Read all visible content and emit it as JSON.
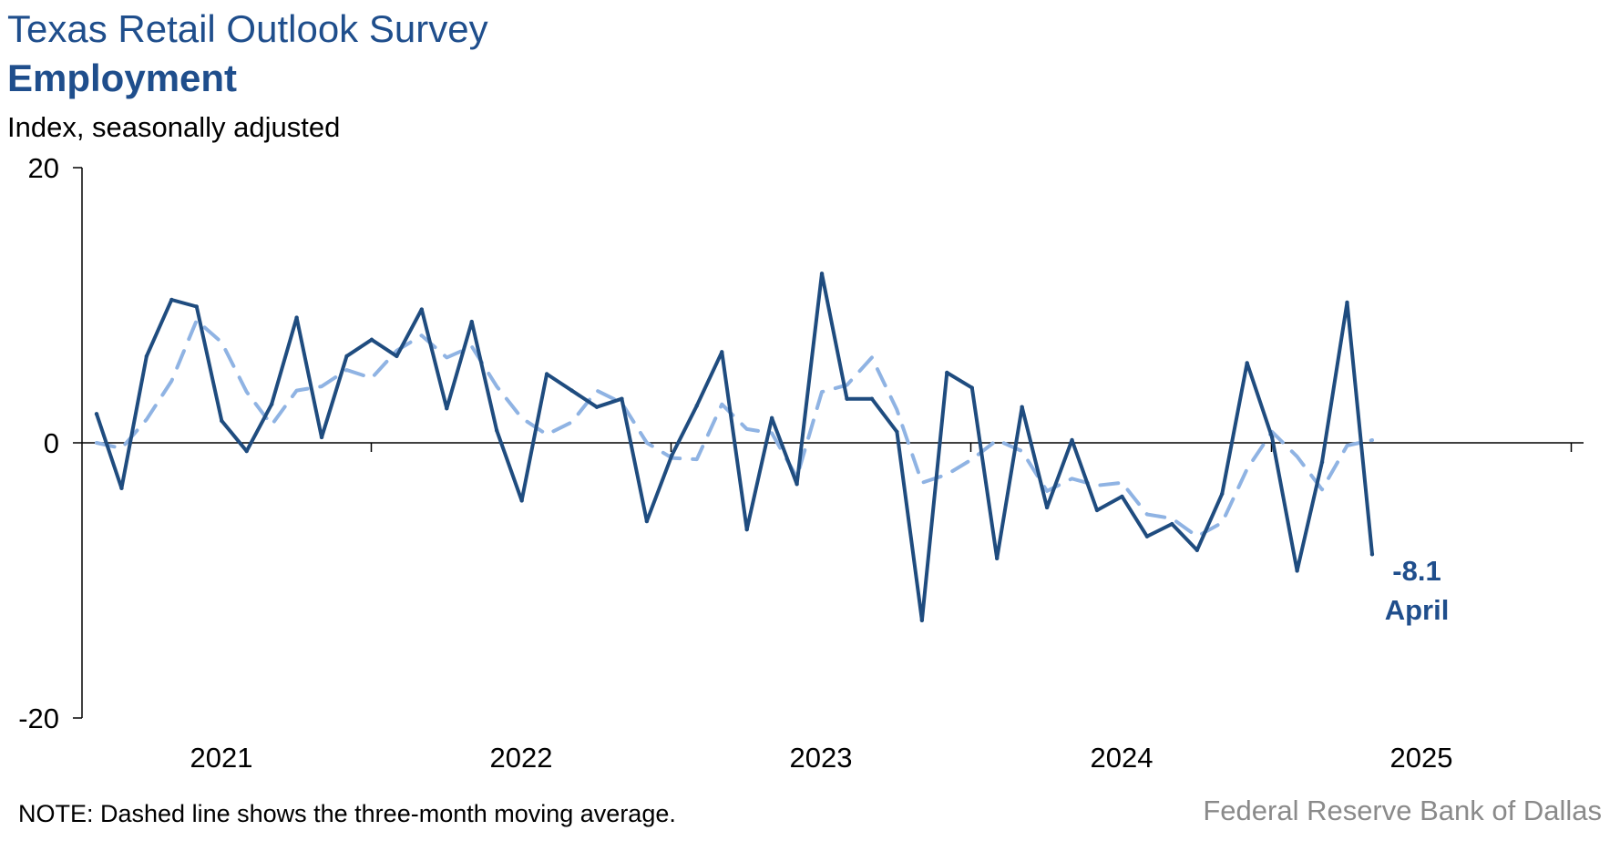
{
  "header": {
    "title": "Texas Retail Outlook Survey",
    "subtitle": "Employment",
    "unit_label": "Index, seasonally adjusted"
  },
  "footer": {
    "note": "NOTE: Dashed line shows the three-month moving average.",
    "source": "Federal Reserve Bank of Dallas"
  },
  "chart_data": {
    "type": "line",
    "ylim": [
      -20,
      20
    ],
    "y_ticks": [
      20,
      0,
      -20
    ],
    "x_tick_labels": [
      "2021",
      "2022",
      "2023",
      "2024",
      "2025"
    ],
    "colors": {
      "series": "#1f4c7f",
      "average": "#8fb3e3",
      "axis": "#000000"
    },
    "annotations": [
      "-8.1",
      "April"
    ],
    "series": [
      {
        "values": [
          2.1,
          -3.3,
          6.3,
          10.4,
          9.9,
          1.6,
          -0.6,
          2.8,
          9.1,
          0.4,
          6.3,
          7.5,
          6.3,
          9.7,
          2.5,
          8.8,
          0.9,
          -4.2,
          5.0,
          3.8,
          2.6,
          3.2,
          -5.7,
          -0.9,
          2.7,
          6.6,
          -6.3,
          1.8,
          -3.0,
          12.3,
          3.2,
          3.2,
          0.8,
          -12.9,
          5.1,
          4.0,
          -8.4,
          2.6,
          -4.7,
          0.2,
          -4.9,
          -3.9,
          -6.8,
          -5.9,
          -7.8,
          -3.7,
          5.8,
          0.4,
          -9.3,
          -1.4,
          10.2,
          -8.1
        ]
      },
      {
        "values": [
          0.0,
          -0.4,
          1.7,
          4.5,
          8.9,
          7.3,
          3.7,
          1.3,
          3.8,
          4.1,
          5.3,
          4.7,
          6.7,
          7.8,
          6.2,
          7.0,
          4.1,
          1.8,
          0.6,
          1.5,
          3.8,
          2.9,
          0.0,
          -1.1,
          -1.2,
          2.8,
          1.0,
          0.7,
          -2.5,
          3.7,
          4.2,
          6.2,
          2.4,
          -2.9,
          -2.3,
          -1.2,
          0.2,
          -0.6,
          -3.5,
          -2.6,
          -3.1,
          -2.9,
          -5.2,
          -5.5,
          -6.8,
          -5.8,
          -1.9,
          0.8,
          -1.0,
          -3.4,
          -0.2,
          0.2
        ]
      }
    ]
  }
}
